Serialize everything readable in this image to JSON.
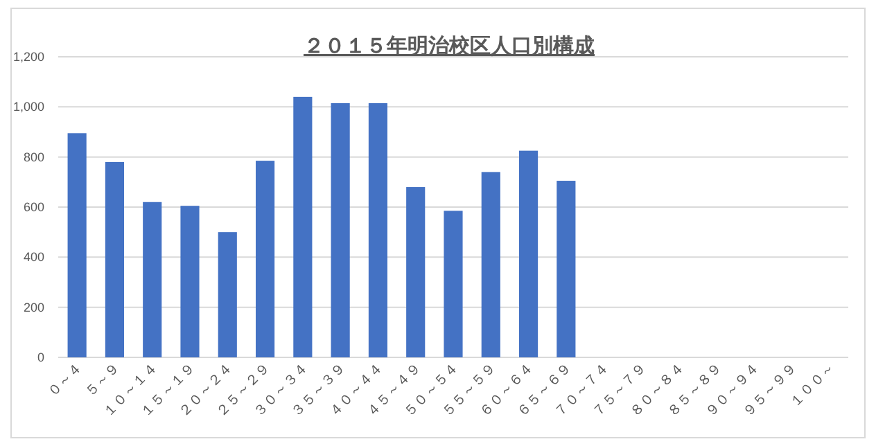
{
  "chart_data": {
    "type": "bar",
    "title": "２０１５年明治校区人口別構成",
    "categories": [
      "０～４",
      "５～９",
      "１０～１４",
      "１５～１９",
      "２０～２４",
      "２５～２９",
      "３０～３４",
      "３５～３９",
      "４０～４４",
      "４５～４９",
      "５０～５４",
      "５５～５９",
      "６０～６４",
      "６５～６９",
      "７０～７４",
      "７５～７９",
      "８０～８４",
      "８５～８９",
      "９０～９４",
      "９５～９９",
      "１００～"
    ],
    "values": [
      895,
      780,
      620,
      605,
      500,
      785,
      1040,
      1015,
      1015,
      680,
      585,
      740,
      825,
      705,
      null,
      null,
      null,
      null,
      null,
      null,
      null
    ],
    "color": "#4472c4",
    "ylim": [
      0,
      1200
    ],
    "yticks": [
      0,
      200,
      400,
      600,
      800,
      {
        "value": 1000,
        "label": "1,000"
      },
      {
        "value": 1200,
        "label": "1,200"
      }
    ],
    "grid": "y"
  }
}
